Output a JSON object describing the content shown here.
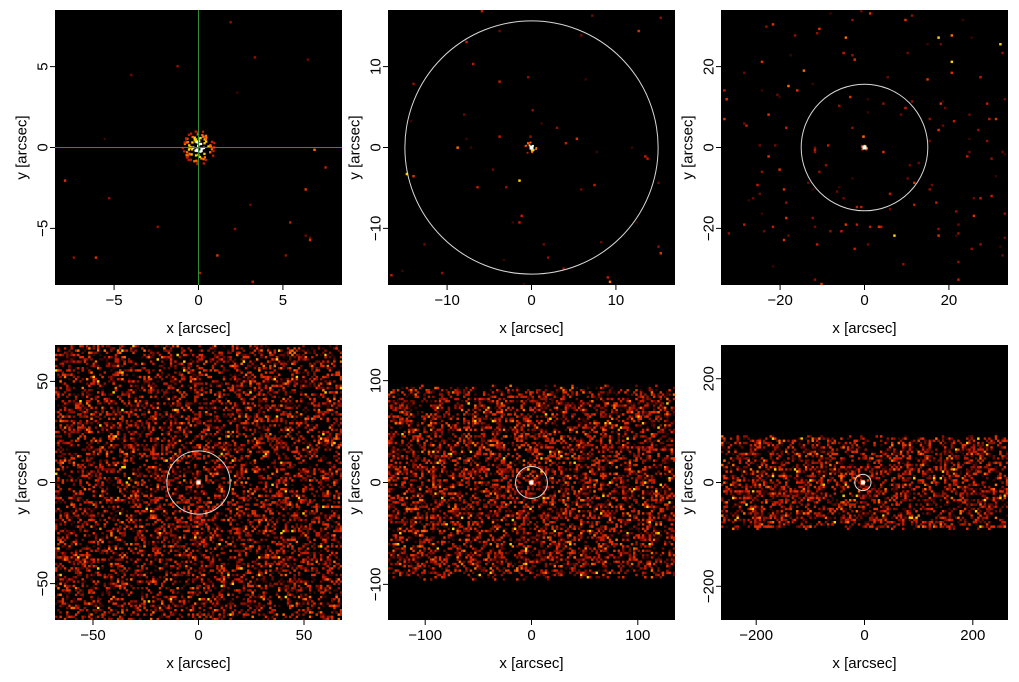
{
  "colors": {
    "background": "#000000",
    "low_counts": "#6b0a00",
    "mid_counts": "#c41a00",
    "high_counts": "#ffd000",
    "peak_counts": "#ffffff",
    "crosshair": "#2f8f2f",
    "aperture_circle": "#d8d8d8"
  },
  "chart_data": [
    {
      "type": "heatmap",
      "xlabel": "x [arcsec]",
      "ylabel": "y [arcsec]",
      "xlim": [
        -8.5,
        8.5
      ],
      "ylim": [
        -8.5,
        8.5
      ],
      "xticks": [
        -5,
        0,
        5
      ],
      "yticks": [
        -5,
        0,
        5
      ],
      "xtick_labels": [
        "−5",
        "0",
        "5"
      ],
      "ytick_labels": [
        "−5",
        "0",
        "5"
      ],
      "source": {
        "x": 0,
        "y": 0,
        "extent": 1.0
      },
      "overlay": "crosshair",
      "background_band_halfwidth": null,
      "noise_level": 0.002
    },
    {
      "type": "heatmap",
      "xlabel": "x [arcsec]",
      "ylabel": "y [arcsec]",
      "xlim": [
        -17,
        17
      ],
      "ylim": [
        -17,
        17
      ],
      "xticks": [
        -10,
        0,
        10
      ],
      "yticks": [
        -10,
        0,
        10
      ],
      "xtick_labels": [
        "−10",
        "0",
        "10"
      ],
      "ytick_labels": [
        "−10",
        "0",
        "10"
      ],
      "source": {
        "x": 0,
        "y": 0,
        "extent": 0.8
      },
      "overlay": "circle",
      "circle_radius": 15,
      "background_band_halfwidth": null,
      "noise_level": 0.003
    },
    {
      "type": "heatmap",
      "xlabel": "x [arcsec]",
      "ylabel": "y [arcsec]",
      "xlim": [
        -34,
        34
      ],
      "ylim": [
        -34,
        34
      ],
      "xticks": [
        -20,
        0,
        20
      ],
      "yticks": [
        -20,
        0,
        20
      ],
      "xtick_labels": [
        "−20",
        "0",
        "20"
      ],
      "ytick_labels": [
        "−20",
        "0",
        "20"
      ],
      "source": {
        "x": 0,
        "y": 0,
        "extent": 0.8
      },
      "overlay": "circle",
      "circle_radius": 15,
      "background_band_halfwidth": null,
      "noise_level": 0.01
    },
    {
      "type": "heatmap",
      "xlabel": "x [arcsec]",
      "ylabel": "y [arcsec]",
      "xlim": [
        -68,
        68
      ],
      "ylim": [
        -68,
        68
      ],
      "xticks": [
        -50,
        0,
        50
      ],
      "yticks": [
        -50,
        0,
        50
      ],
      "xtick_labels": [
        "−50",
        "0",
        "50"
      ],
      "ytick_labels": [
        "−50",
        "0",
        "50"
      ],
      "source": {
        "x": 0,
        "y": 0,
        "extent": 1.2
      },
      "overlay": "circle",
      "circle_radius": 15,
      "background_band_halfwidth": 100,
      "noise_level": 0.35
    },
    {
      "type": "heatmap",
      "xlabel": "x [arcsec]",
      "ylabel": "y [arcsec]",
      "xlim": [
        -135,
        135
      ],
      "ylim": [
        -135,
        135
      ],
      "xticks": [
        -100,
        0,
        100
      ],
      "yticks": [
        -100,
        0,
        100
      ],
      "xtick_labels": [
        "−100",
        "0",
        "100"
      ],
      "ytick_labels": [
        "−100",
        "0",
        "100"
      ],
      "source": {
        "x": 0,
        "y": 0,
        "extent": 2.5
      },
      "overlay": "circle",
      "circle_radius": 15,
      "background_band_halfwidth": 90,
      "noise_level": 0.4
    },
    {
      "type": "heatmap",
      "xlabel": "x [arcsec]",
      "ylabel": "y [arcsec]",
      "xlim": [
        -265,
        265
      ],
      "ylim": [
        -265,
        265
      ],
      "xticks": [
        -200,
        0,
        200
      ],
      "yticks": [
        -200,
        0,
        200
      ],
      "xtick_labels": [
        "−200",
        "0",
        "200"
      ],
      "ytick_labels": [
        "−200",
        "0",
        "200"
      ],
      "source": {
        "x": -3,
        "y": 0,
        "extent": 4
      },
      "overlay": "circle",
      "circle_radius": 15,
      "background_band_halfwidth": 85,
      "noise_level": 0.4
    }
  ]
}
